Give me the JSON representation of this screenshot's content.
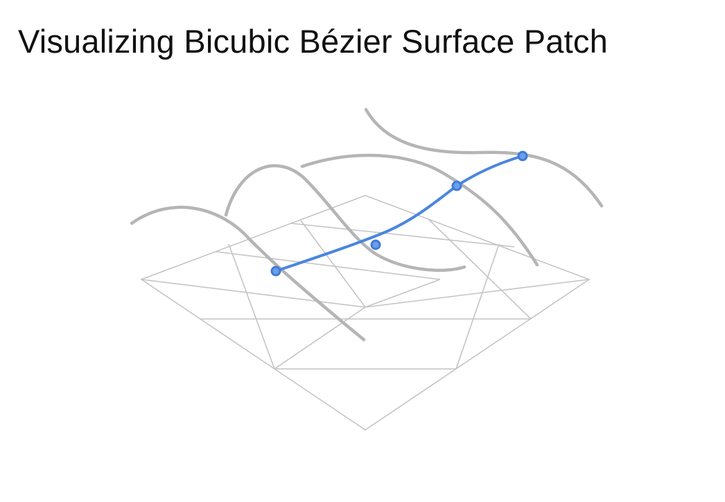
{
  "title": "Visualizing Bicubic Bézier Surface Patch",
  "diagram": {
    "grid": {
      "cells_u": 3,
      "cells_v": 3,
      "color": "#c4c4c4"
    },
    "curves": {
      "surface_color": "#b5b5b5",
      "highlight_color": "#4a86e0",
      "surface_curve_count": 4,
      "highlight_control_point_count": 4
    }
  }
}
